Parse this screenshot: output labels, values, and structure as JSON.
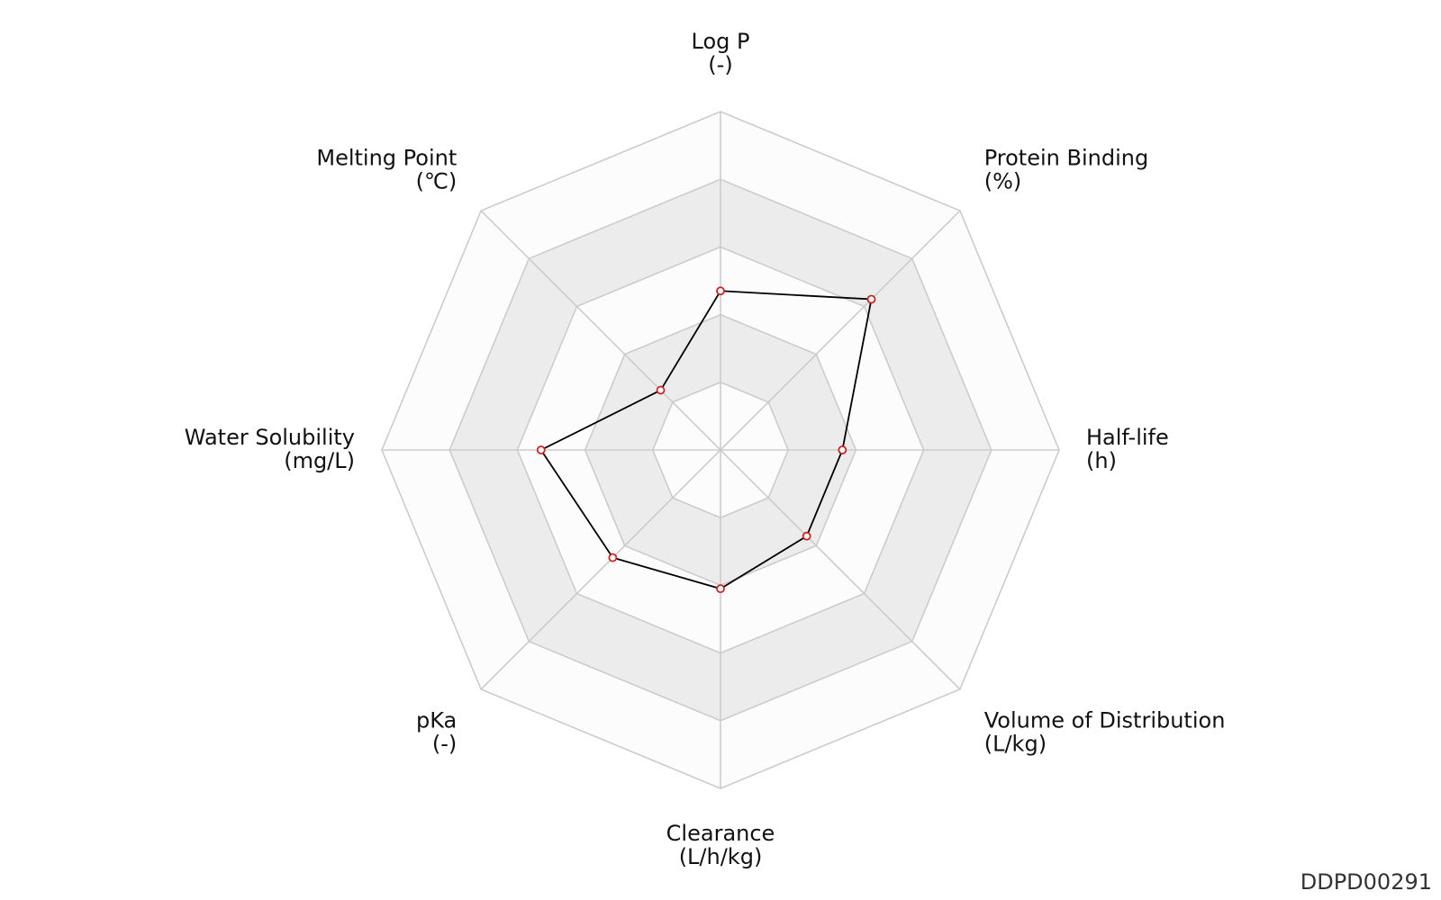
{
  "chart_id": "DDPD00291",
  "colors": {
    "line": "#000000",
    "marker": "#cc2222",
    "grid": "#cccccc",
    "band_light": "#fcfcfc",
    "band_dark": "#ececec"
  },
  "chart_data": {
    "type": "radar",
    "title": "",
    "axes": [
      {
        "name": "Log P",
        "unit": "(-)"
      },
      {
        "name": "Protein Binding",
        "unit": "(%)"
      },
      {
        "name": "Half-life",
        "unit": "(h)"
      },
      {
        "name": "Volume of Distribution",
        "unit": "(L/kg)"
      },
      {
        "name": "Clearance",
        "unit": "(L/h/kg)"
      },
      {
        "name": "pKa",
        "unit": "(-)"
      },
      {
        "name": "Water Solubility",
        "unit": "(mg/L)"
      },
      {
        "name": "Melting Point",
        "unit": "(℃)"
      }
    ],
    "rings": 5,
    "range": [
      0,
      1
    ],
    "grid": true,
    "legend": "none",
    "series": [
      {
        "values": [
          0.47,
          0.63,
          0.36,
          0.36,
          0.41,
          0.45,
          0.53,
          0.25
        ]
      }
    ]
  }
}
